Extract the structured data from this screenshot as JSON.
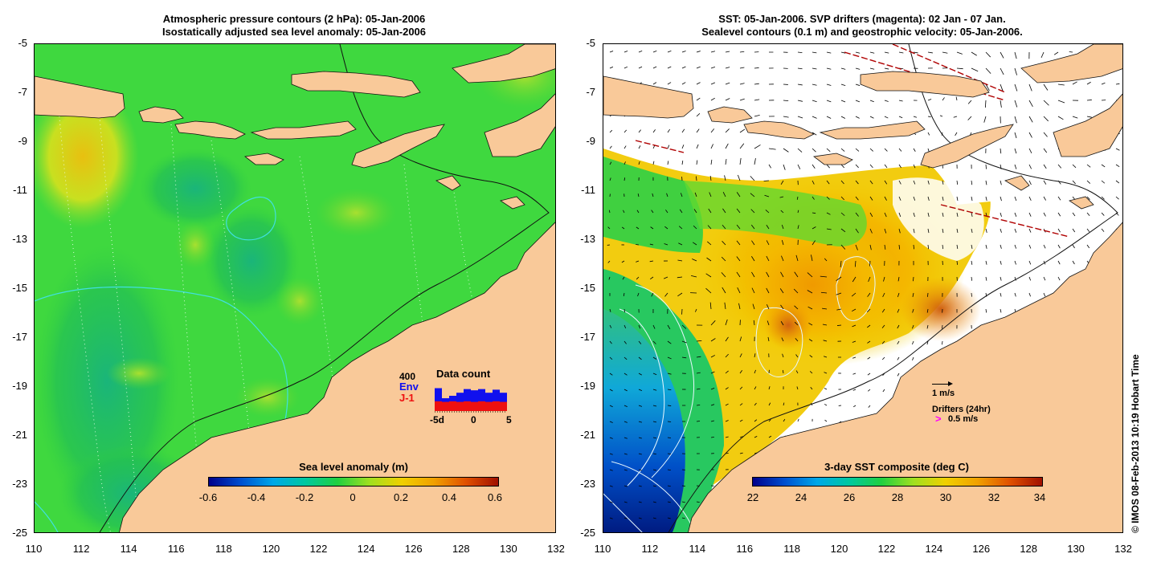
{
  "left_panel": {
    "title_line1": "Atmospheric pressure contours (2 hPa): 05-Jan-2006",
    "title_line2": "Isostatically adjusted sea level anomaly: 05-Jan-2006",
    "colorbar_title": "Sea level anomaly (m)",
    "colorbar_ticks": [
      "-0.6",
      "-0.4",
      "-0.2",
      "0",
      "0.2",
      "0.4",
      "0.6"
    ],
    "inset": {
      "title": "Data count",
      "max_label": "400",
      "env_label": "Env",
      "j1_label": "J-1",
      "x_ticks": [
        "-5d",
        "0",
        "5"
      ],
      "env_color": "#1010ee",
      "j1_color": "#ee1010",
      "env_values": [
        0.75,
        0.42,
        0.5,
        0.6,
        0.72,
        0.68,
        0.72,
        0.6,
        0.7,
        0.6
      ],
      "j1_values": [
        0.32,
        0.3,
        0.32,
        0.3,
        0.32,
        0.3,
        0.32,
        0.3,
        0.32,
        0.3
      ]
    }
  },
  "right_panel": {
    "title_line1": "SST: 05-Jan-2006. SVP drifters (magenta): 02 Jan - 07 Jan.",
    "title_line2": "Sealevel contours (0.1 m) and geostrophic velocity: 05-Jan-2006.",
    "colorbar_title": "3-day SST composite (deg C)",
    "colorbar_ticks": [
      "22",
      "24",
      "26",
      "28",
      "30",
      "32",
      "34"
    ],
    "velocity_scale_label": "1 m/s",
    "drifters_label": "Drifters (24hr)",
    "drifter_speed_label": "0.5 m/s",
    "drifter_symbol": ">",
    "drifter_color": "#ff00ff"
  },
  "axes": {
    "x_ticks": [
      "110",
      "112",
      "114",
      "116",
      "118",
      "120",
      "122",
      "124",
      "126",
      "128",
      "130",
      "132"
    ],
    "y_ticks": [
      "-5",
      "-7",
      "-9",
      "-11",
      "-13",
      "-15",
      "-17",
      "-19",
      "-21",
      "-23",
      "-25"
    ]
  },
  "colors": {
    "land": "#f9c999",
    "sea_level_base": "#3fd83f",
    "white_cloud": "#ffffff"
  },
  "copyright": "© IMOS 08-Feb-2013 10:19 Hobart Time"
}
